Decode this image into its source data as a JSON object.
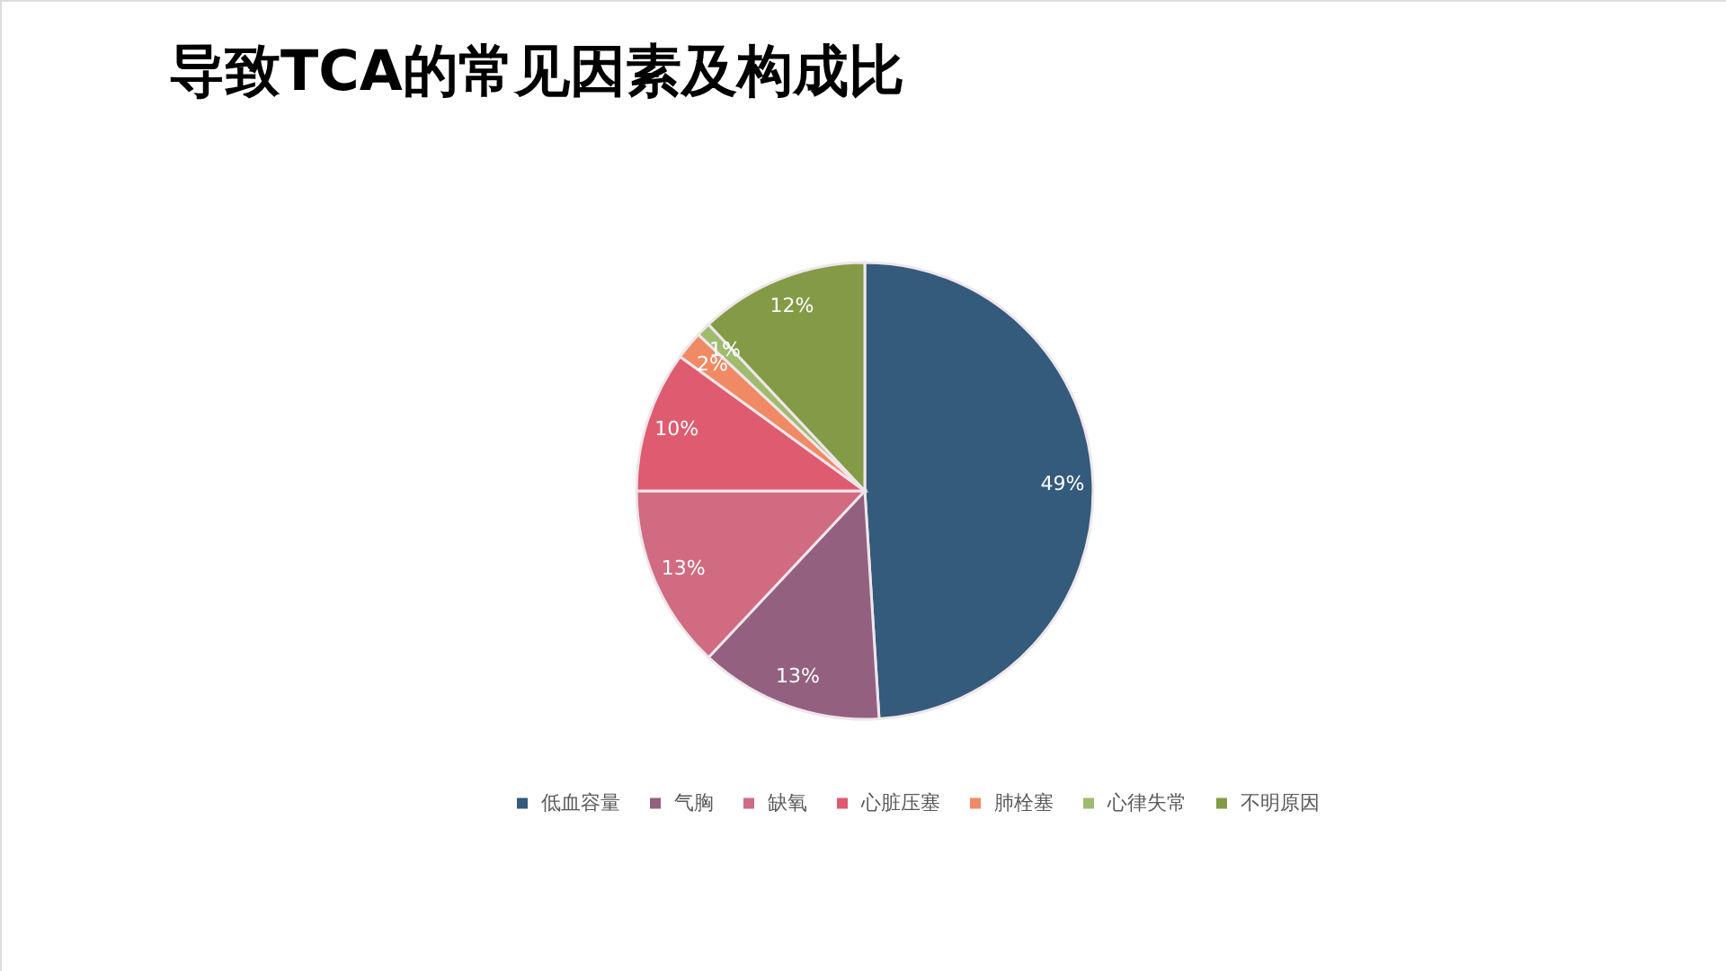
{
  "chart_data": {
    "type": "pie",
    "title": "导致TCA的常见因素及构成比",
    "categories": [
      "低血容量",
      "气胸",
      "缺氧",
      "心脏压塞",
      "肺栓塞",
      "心律失常",
      "不明原因"
    ],
    "values": [
      49,
      13,
      13,
      10,
      2,
      1,
      12
    ],
    "colors": [
      "#345a7c",
      "#94607f",
      "#d06b81",
      "#df5b6f",
      "#f08a65",
      "#9fbb6e",
      "#839b46"
    ],
    "value_labels": [
      "49%",
      "13%",
      "13%",
      "10%",
      "2%",
      "1%",
      "12%"
    ],
    "legend": "bottom"
  }
}
